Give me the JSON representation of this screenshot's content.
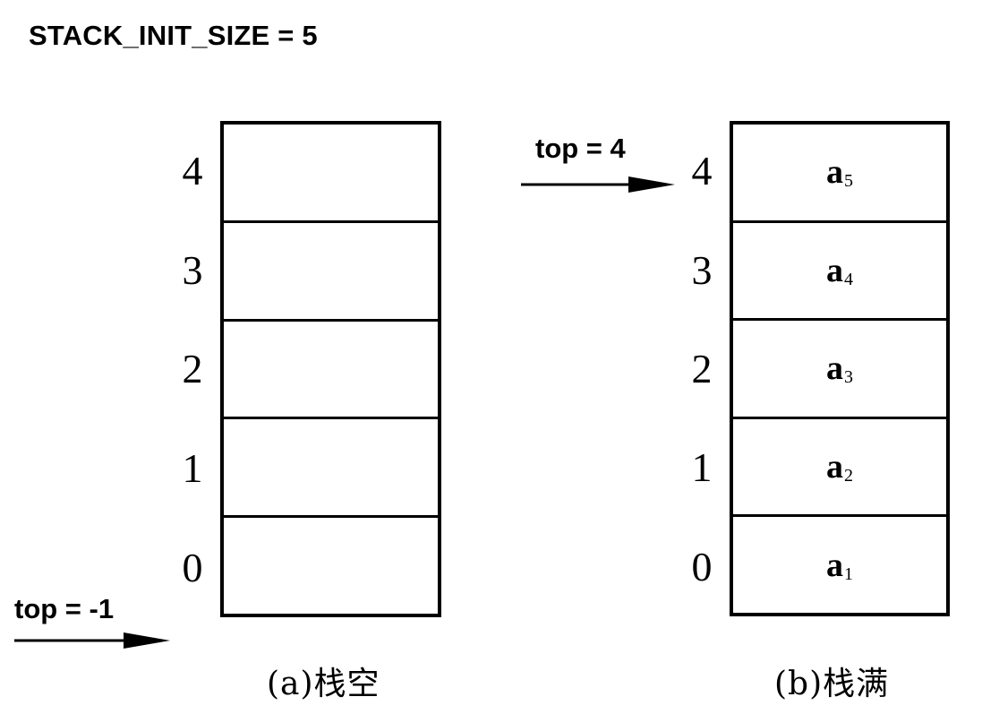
{
  "title": "STACK_INIT_SIZE = 5",
  "left_stack": {
    "caption": "(a)栈空",
    "pointer_label": "top = -1",
    "indices": [
      "4",
      "3",
      "2",
      "1",
      "0"
    ],
    "cells": [
      "",
      "",
      "",
      "",
      ""
    ]
  },
  "right_stack": {
    "caption": "(b)栈满",
    "pointer_label": "top = 4",
    "indices": [
      "4",
      "3",
      "2",
      "1",
      "0"
    ],
    "cells": [
      {
        "base": "a",
        "sub": "5"
      },
      {
        "base": "a",
        "sub": "4"
      },
      {
        "base": "a",
        "sub": "3"
      },
      {
        "base": "a",
        "sub": "2"
      },
      {
        "base": "a",
        "sub": "1"
      }
    ]
  }
}
